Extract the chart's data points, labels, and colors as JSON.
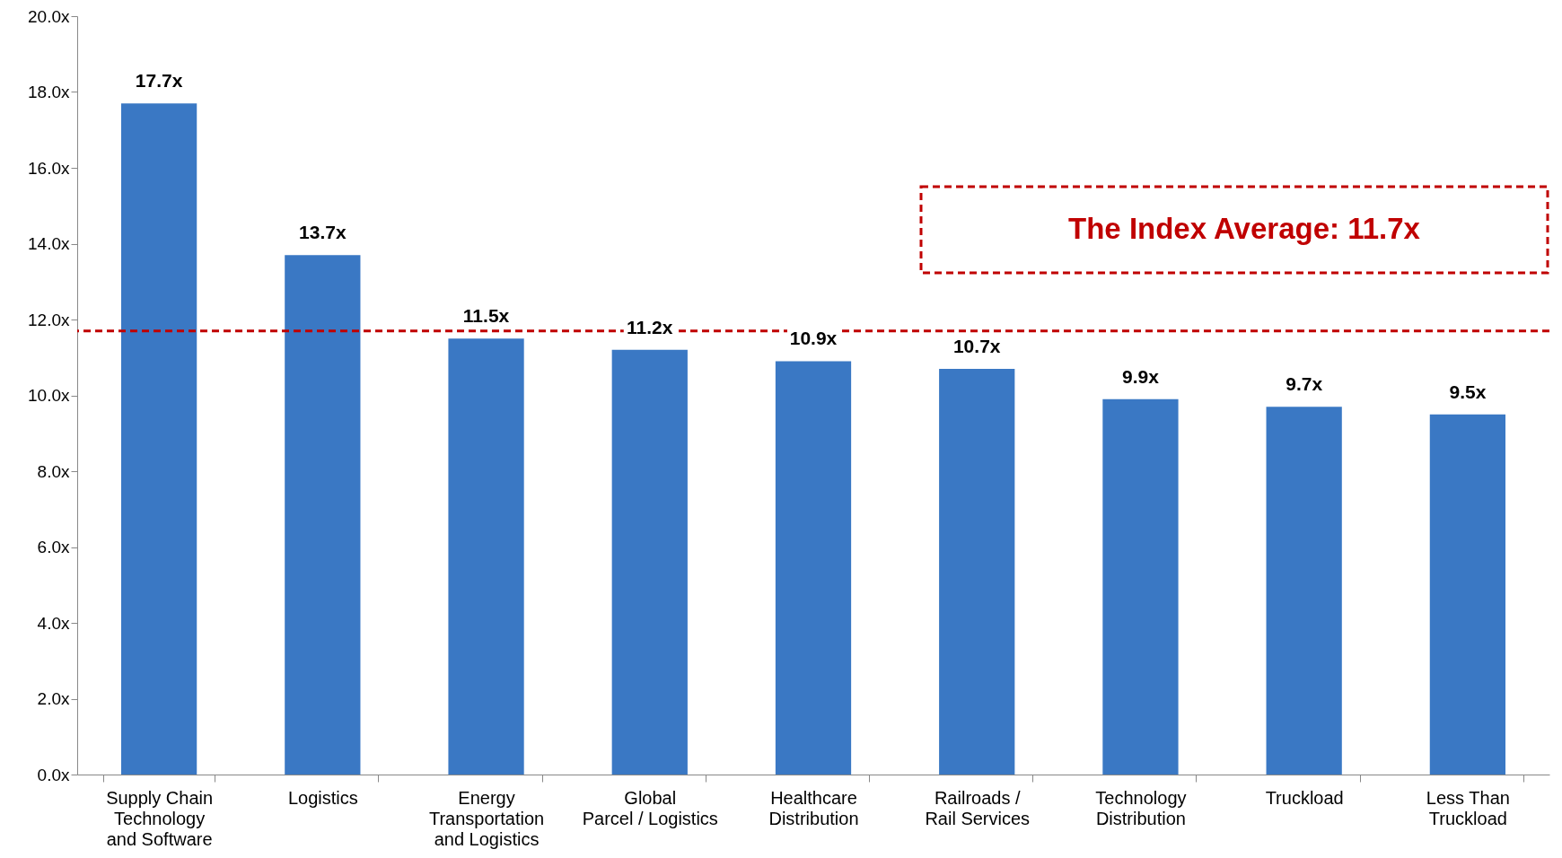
{
  "chart_data": {
    "type": "bar",
    "categories": [
      "Supply Chain\nTechnology\nand Software",
      "Logistics",
      "Energy\nTransportation\nand Logistics",
      "Global\nParcel / Logistics",
      "Healthcare\nDistribution",
      "Railroads /\nRail Services",
      "Technology\nDistribution",
      "Truckload",
      "Less Than\nTruckload"
    ],
    "values": [
      17.7,
      13.7,
      11.5,
      11.2,
      10.9,
      10.7,
      9.9,
      9.7,
      9.5
    ],
    "value_labels": [
      "17.7x",
      "13.7x",
      "11.5x",
      "11.2x",
      "10.9x",
      "10.7x",
      "9.9x",
      "9.7x",
      "9.5x"
    ],
    "color": "#3a78c4",
    "ylim": [
      0,
      20
    ],
    "yticks": [
      {
        "value": 0,
        "label": "0.0x"
      },
      {
        "value": 2,
        "label": "2.0x"
      },
      {
        "value": 4,
        "label": "4.0x"
      },
      {
        "value": 6,
        "label": "6.0x"
      },
      {
        "value": 8,
        "label": "8.0x"
      },
      {
        "value": 10,
        "label": "10.0x"
      },
      {
        "value": 12,
        "label": "12.0x"
      },
      {
        "value": 14,
        "label": "14.0x"
      },
      {
        "value": 16,
        "label": "16.0x"
      },
      {
        "value": 18,
        "label": "18.0x"
      },
      {
        "value": 20,
        "label": "20.0x"
      }
    ],
    "grid": false,
    "ref_lines": [
      {
        "axis": "y",
        "value": 11.7,
        "label": "The Index Average: 11.7x",
        "color": "#c00000",
        "line_style": "dashed"
      }
    ]
  }
}
